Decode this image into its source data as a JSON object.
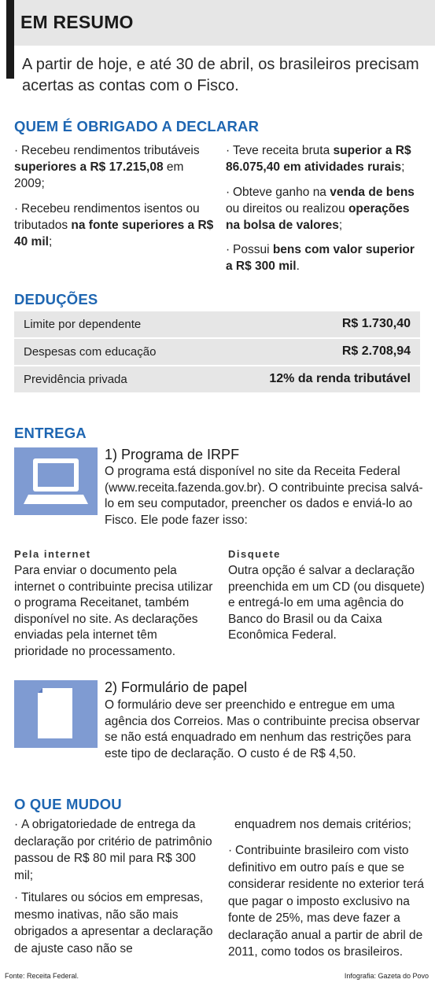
{
  "header": {
    "title": "EM RESUMO",
    "intro": "A partir de hoje, e até 30 de abril, os brasileiros precisam acertas as contas com o Fisco."
  },
  "quem": {
    "title": "QUEM É OBRIGADO A DECLARAR",
    "left": [
      {
        "pre": "Recebeu rendimentos tributáveis ",
        "bold": "superiores a R$ 17.215,08",
        "post": " em 2009;"
      },
      {
        "pre": "Recebeu rendimentos isentos ou tributados ",
        "bold": "na fonte superiores a R$ 40 mil",
        "post": ";"
      }
    ],
    "right": [
      {
        "pre": "Teve receita bruta ",
        "bold": "superior a R$ 86.075,40 em atividades rurais",
        "post": ";"
      },
      {
        "pre": "Obteve ganho na ",
        "bold": "venda de bens",
        "post": " ou direitos ou realizou ",
        "bold2": "operações na bolsa de valores",
        "post2": ";"
      },
      {
        "pre": "Possui ",
        "bold": "bens com valor superior a R$ 300 mil",
        "post": "."
      }
    ]
  },
  "deducoes": {
    "title": "DEDUÇÕES",
    "rows": [
      {
        "label": "Limite por dependente",
        "value": "R$ 1.730,40"
      },
      {
        "label": "Despesas com educação",
        "value": "R$ 2.708,94"
      },
      {
        "label": "Previdência privada",
        "value": "12% da renda tributável"
      }
    ]
  },
  "entrega": {
    "title": "ENTREGA",
    "item1": {
      "title": "1) Programa de IRPF",
      "text": "O programa está disponível no site da Receita Federal (www.receita.fazenda.gov.br). O contribuinte precisa salvá-lo em seu computador, preencher os dados e enviá-lo ao Fisco. Ele pode fazer isso:"
    },
    "internet": {
      "title": "Pela internet",
      "text": "Para enviar o documento pela internet o contribuinte precisa utilizar o programa Receitanet, também disponível no site. As declarações enviadas pela internet têm prioridade no processamento."
    },
    "disquete": {
      "title": "Disquete",
      "text": "Outra opção é salvar a declaração preenchida em um CD (ou disquete) e entregá-lo em uma agência do Banco do Brasil ou da Caixa Econômica Federal."
    },
    "item2": {
      "title": "2) Formulário de papel",
      "text": "O formulário deve ser preenchido e entregue em uma agência dos Correios. Mas o contribuinte precisa observar se não está enquadrado em nenhum das restrições para este tipo de declaração. O custo é de R$ 4,50."
    }
  },
  "mudou": {
    "title": "O QUE MUDOU",
    "left": [
      "A obrigatoriedade de entrega da declaração por critério de patrimônio passou de R$ 80 mil para R$ 300 mil;",
      "Titulares ou sócios em empresas, mesmo inativas, não são mais obrigados a apresentar a declaração de ajuste caso não se"
    ],
    "right_cont": "enquadrem nos demais critérios;",
    "right": [
      "Contribuinte brasileiro com visto definitivo em outro país e que se considerar residente no exterior terá que pagar o imposto exclusivo na fonte de 25%, mas deve fazer a declaração anual a partir de abril de 2011, como todos os brasileiros."
    ]
  },
  "footer": {
    "source": "Fonte: Receita Federal.",
    "credit": "Infografia: Gazeta do Povo"
  },
  "colors": {
    "accent": "#1e66b2",
    "icon": "#7f9bd2",
    "row": "#e6e6e6"
  },
  "icons": [
    "computer-icon",
    "document-icon"
  ]
}
